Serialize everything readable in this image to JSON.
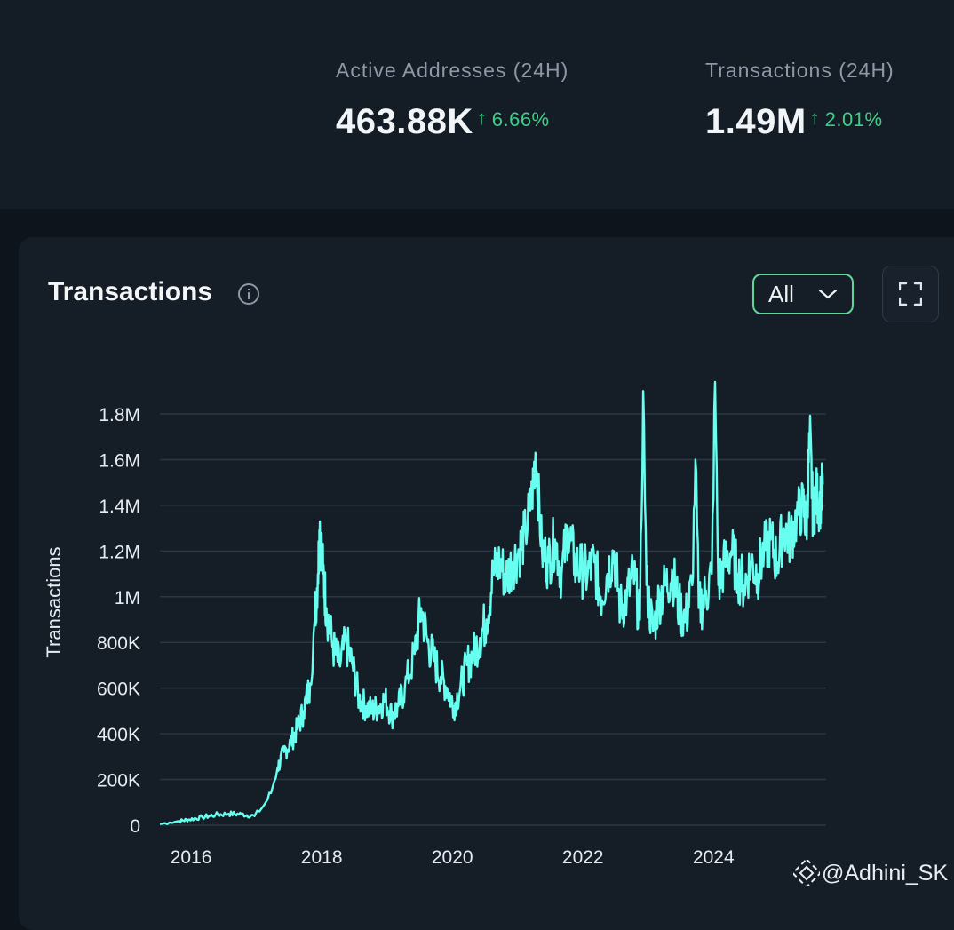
{
  "stats": [
    {
      "label": "Active Addresses (24H)",
      "value": "463.88K",
      "change": "6.66%"
    },
    {
      "label": "Transactions (24H)",
      "value": "1.49M",
      "change": "2.01%"
    }
  ],
  "card": {
    "title": "Transactions",
    "range": {
      "selected": "All"
    }
  },
  "watermark": "@Adhini_SK",
  "colors": {
    "line": "#66fff0",
    "up": "#3ccf86",
    "accent": "#5fd79a"
  },
  "icons": [
    "info-icon",
    "chevron-down-icon",
    "expand-icon",
    "binance-logo-icon"
  ],
  "chart_data": {
    "type": "line",
    "title": "",
    "xlabel": "",
    "ylabel": "Transactions",
    "grid": true,
    "xlim": [
      2015.55,
      2025.75
    ],
    "ylim": [
      0,
      1800000
    ],
    "y_ticks": [
      {
        "value": 0,
        "label": "0"
      },
      {
        "value": 200000,
        "label": "200K"
      },
      {
        "value": 400000,
        "label": "400K"
      },
      {
        "value": 600000,
        "label": "600K"
      },
      {
        "value": 800000,
        "label": "800K"
      },
      {
        "value": 1000000,
        "label": "1M"
      },
      {
        "value": 1200000,
        "label": "1.2M"
      },
      {
        "value": 1400000,
        "label": "1.4M"
      },
      {
        "value": 1600000,
        "label": "1.6M"
      },
      {
        "value": 1800000,
        "label": "1.8M"
      }
    ],
    "x_ticks": [
      {
        "value": 2016,
        "label": "2016"
      },
      {
        "value": 2018,
        "label": "2018"
      },
      {
        "value": 2020,
        "label": "2020"
      },
      {
        "value": 2022,
        "label": "2022"
      },
      {
        "value": 2024,
        "label": "2024"
      }
    ],
    "series": [
      {
        "x": [
          2015.55,
          2015.7,
          2015.85,
          2016.0,
          2016.2,
          2016.4,
          2016.6,
          2016.8,
          2017.0,
          2017.15,
          2017.25,
          2017.35,
          2017.45,
          2017.55,
          2017.65,
          2017.75,
          2017.85,
          2017.92,
          2017.97,
          2018.0,
          2018.05,
          2018.1,
          2018.2,
          2018.3,
          2018.4,
          2018.5,
          2018.6,
          2018.7,
          2018.8,
          2018.9,
          2019.0,
          2019.1,
          2019.2,
          2019.3,
          2019.45,
          2019.55,
          2019.65,
          2019.75,
          2019.85,
          2019.95,
          2020.05,
          2020.15,
          2020.25,
          2020.35,
          2020.45,
          2020.55,
          2020.65,
          2020.75,
          2020.85,
          2020.95,
          2021.05,
          2021.15,
          2021.25,
          2021.3,
          2021.4,
          2021.5,
          2021.6,
          2021.7,
          2021.8,
          2021.9,
          2022.0,
          2022.1,
          2022.2,
          2022.3,
          2022.4,
          2022.5,
          2022.6,
          2022.7,
          2022.8,
          2022.9,
          2022.95,
          2023.0,
          2023.1,
          2023.2,
          2023.3,
          2023.4,
          2023.5,
          2023.6,
          2023.7,
          2023.75,
          2023.8,
          2023.9,
          2024.0,
          2024.05,
          2024.1,
          2024.2,
          2024.3,
          2024.4,
          2024.5,
          2024.6,
          2024.7,
          2024.8,
          2024.9,
          2025.0,
          2025.1,
          2025.2,
          2025.3,
          2025.4,
          2025.45,
          2025.5,
          2025.55,
          2025.6,
          2025.65,
          2025.7
        ],
        "values": [
          5000,
          12000,
          18000,
          25000,
          35000,
          45000,
          50000,
          48000,
          40000,
          90000,
          140000,
          250000,
          320000,
          360000,
          420000,
          500000,
          620000,
          900000,
          1100000,
          1330000,
          1100000,
          950000,
          780000,
          700000,
          800000,
          700000,
          550000,
          520000,
          500000,
          520000,
          550000,
          480000,
          520000,
          600000,
          750000,
          950000,
          800000,
          720000,
          650000,
          600000,
          520000,
          600000,
          700000,
          750000,
          820000,
          900000,
          1100000,
          1150000,
          1080000,
          1150000,
          1200000,
          1280000,
          1450000,
          1630000,
          1200000,
          1150000,
          1250000,
          1100000,
          1300000,
          1150000,
          1120000,
          1100000,
          1150000,
          1000000,
          1100000,
          1200000,
          950000,
          1000000,
          1100000,
          900000,
          1900000,
          1050000,
          850000,
          1000000,
          1050000,
          1100000,
          950000,
          900000,
          1050000,
          1600000,
          950000,
          1000000,
          1100000,
          1940000,
          1050000,
          1150000,
          1200000,
          1100000,
          1050000,
          1150000,
          1100000,
          1200000,
          1250000,
          1150000,
          1300000,
          1250000,
          1350000,
          1400000,
          1300000,
          1720000,
          1350000,
          1450000,
          1400000,
          1490000
        ]
      }
    ]
  }
}
